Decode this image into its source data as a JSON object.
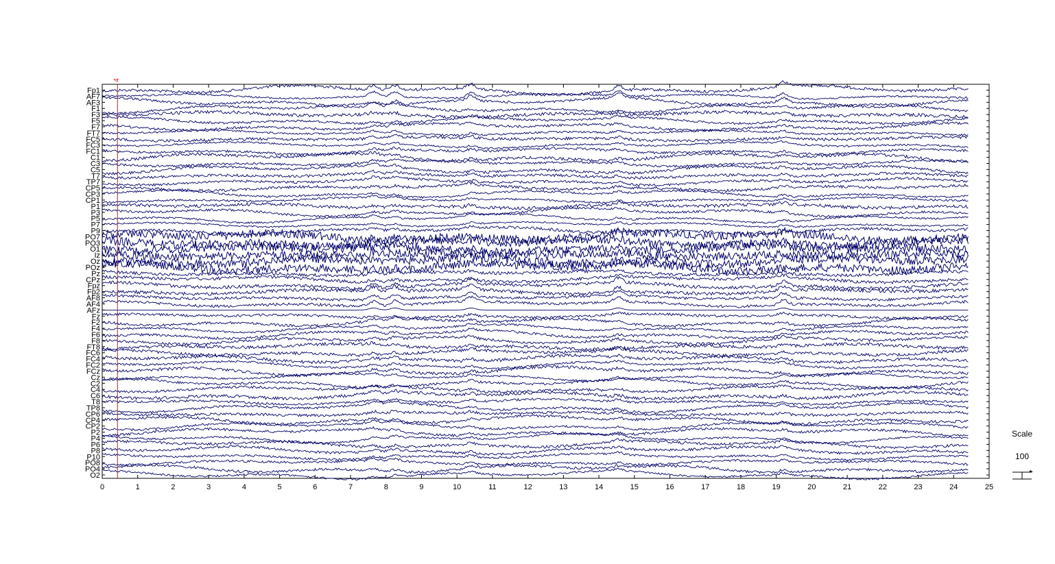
{
  "chart_data": {
    "type": "line",
    "trace_color": "#000066",
    "event_color": "#ff0000",
    "xlim": [
      0,
      25
    ],
    "data_end": 24.43,
    "x_ticks": [
      "0",
      "1",
      "2",
      "3",
      "4",
      "5",
      "6",
      "7",
      "8",
      "9",
      "10",
      "11",
      "12",
      "13",
      "14",
      "15",
      "16",
      "17",
      "18",
      "19",
      "20",
      "21",
      "22",
      "23",
      "24",
      "25"
    ],
    "channels": [
      "Fp1",
      "AF7",
      "AF3",
      "F1",
      "F3",
      "F5",
      "F7",
      "FT7",
      "FC5",
      "FC3",
      "FC1",
      "C1",
      "C3",
      "C5",
      "T7",
      "TP7",
      "CP5",
      "CP3",
      "CP1",
      "P1",
      "P3",
      "P5",
      "P7",
      "P9",
      "PO7",
      "PO3",
      "O1",
      "Iz",
      "Oz",
      "POz",
      "Pz",
      "CPz",
      "Fpz",
      "Fp2",
      "AF8",
      "AF4",
      "AFz",
      "Fz",
      "F2",
      "F4",
      "F6",
      "F8",
      "FT8",
      "FC6",
      "FC4",
      "FC2",
      "FCz",
      "Cz",
      "C2",
      "C4",
      "C6",
      "T8",
      "TP8",
      "CP6",
      "CP4",
      "CP2",
      "P2",
      "P4",
      "P6",
      "P8",
      "P10",
      "PO8",
      "PO4",
      "O2"
    ],
    "event": {
      "label": "4",
      "x": 0.43
    },
    "transient_times": [
      7.65,
      8.25,
      10.4,
      14.55,
      19.2
    ],
    "scale": {
      "title": "Scale",
      "value": "100"
    }
  }
}
